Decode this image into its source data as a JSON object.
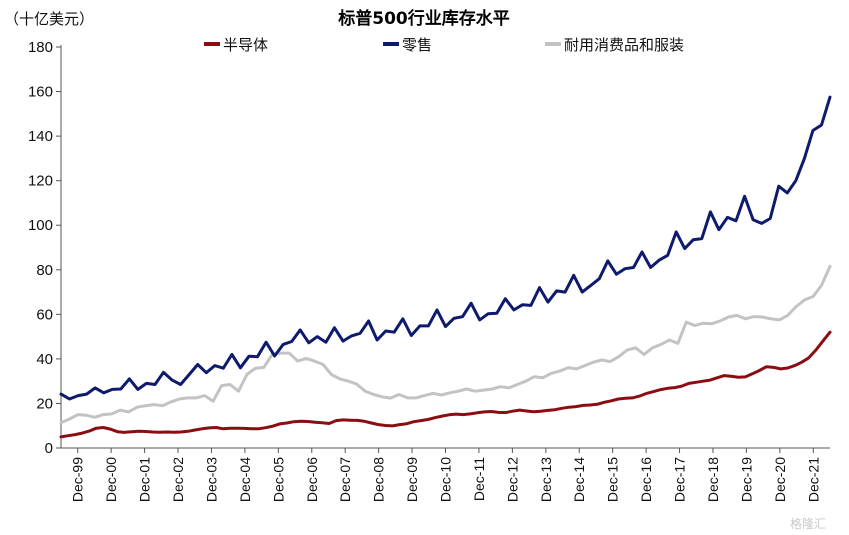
{
  "chart_data": {
    "type": "line",
    "title": "标普500行业库存水平",
    "unit_label": "（十亿美元）",
    "ylim": [
      0,
      180
    ],
    "yticks": [
      0,
      20,
      40,
      60,
      80,
      100,
      120,
      140,
      160,
      180
    ],
    "xlabels": [
      "Dec-99",
      "Dec-00",
      "Dec-01",
      "Dec-02",
      "Dec-03",
      "Dec-04",
      "Dec-05",
      "Dec-06",
      "Dec-07",
      "Dec-08",
      "Dec-09",
      "Dec-10",
      "Dec-11",
      "Dec-12",
      "Dec-13",
      "Dec-14",
      "Dec-15",
      "Dec-16",
      "Dec-17",
      "Dec-18",
      "Dec-19",
      "Dec-20",
      "Dec-21"
    ],
    "grid": false,
    "legend_position": "top",
    "watermark": "格隆汇",
    "series": [
      {
        "name": "半导体",
        "color": "#8b0d12",
        "values": [
          5.0,
          5.5,
          6.0,
          6.7,
          7.6,
          8.9,
          9.2,
          8.5,
          7.3,
          7.0,
          7.3,
          7.5,
          7.4,
          7.2,
          7.1,
          7.2,
          7.1,
          7.2,
          7.5,
          8.1,
          8.6,
          9.0,
          9.2,
          8.6,
          8.9,
          8.9,
          8.8,
          8.6,
          8.6,
          9.1,
          9.8,
          10.8,
          11.2,
          11.8,
          12.0,
          11.9,
          11.6,
          11.3,
          11.0,
          12.3,
          12.6,
          12.5,
          12.4,
          12.0,
          11.2,
          10.5,
          10.1,
          9.9,
          10.5,
          10.9,
          11.8,
          12.3,
          12.8,
          13.6,
          14.3,
          14.9,
          15.2,
          15.0,
          15.3,
          15.8,
          16.2,
          16.4,
          16.0,
          15.9,
          16.5,
          17.0,
          16.6,
          16.3,
          16.5,
          16.9,
          17.2,
          17.8,
          18.3,
          18.6,
          19.1,
          19.3,
          19.6,
          20.5,
          21.2,
          22.0,
          22.3,
          22.5,
          23.3,
          24.5,
          25.3,
          26.2,
          26.8,
          27.1,
          27.8,
          29.0,
          29.5,
          30.0,
          30.5,
          31.5,
          32.5,
          32.2,
          31.8,
          31.9,
          33.3,
          34.8,
          36.5,
          36.2,
          35.5,
          35.9,
          37.0,
          38.5,
          40.5,
          44.0,
          48.0,
          52.0
        ]
      },
      {
        "name": "零售",
        "color": "#0e1a6e",
        "values": [
          24.2,
          22.0,
          23.5,
          24.2,
          27.0,
          24.8,
          26.3,
          26.5,
          31.0,
          26.3,
          29.0,
          28.5,
          34.0,
          30.5,
          28.5,
          33.0,
          37.5,
          33.8,
          37.0,
          35.8,
          42.0,
          36.0,
          41.2,
          41.0,
          47.5,
          41.3,
          46.5,
          47.8,
          53.0,
          47.2,
          50.0,
          47.5,
          54.0,
          48.0,
          50.3,
          51.5,
          57.0,
          48.5,
          52.5,
          52.0,
          58.0,
          50.5,
          54.8,
          54.8,
          62.0,
          54.5,
          58.2,
          59.0,
          65.0,
          57.5,
          60.3,
          60.5,
          67.0,
          62.0,
          64.3,
          64.0,
          72.0,
          65.5,
          70.5,
          70.0,
          77.5,
          70.0,
          73.0,
          76.0,
          84.0,
          78.0,
          80.5,
          81.0,
          88.0,
          81.0,
          84.3,
          86.5,
          97.0,
          89.5,
          93.5,
          94.0,
          106.0,
          98.0,
          103.5,
          102.0,
          113.0,
          102.5,
          100.8,
          103.0,
          117.5,
          114.5,
          120.0,
          130.0,
          142.5,
          145.0,
          157.5
        ]
      },
      {
        "name": "耐用消费品和服装",
        "color": "#c3c3c3",
        "values": [
          11.3,
          13.0,
          15.0,
          14.7,
          13.8,
          15.0,
          15.3,
          17.0,
          16.2,
          18.3,
          19.0,
          19.5,
          19.0,
          20.7,
          22.0,
          22.5,
          22.5,
          23.5,
          21.0,
          28.0,
          28.5,
          25.5,
          33.0,
          35.8,
          36.2,
          42.0,
          42.6,
          42.6,
          39.0,
          40.2,
          39.0,
          37.5,
          33.0,
          31.0,
          30.0,
          28.7,
          25.5,
          24.0,
          23.0,
          22.4,
          24.0,
          22.5,
          22.5,
          23.5,
          24.5,
          23.8,
          24.8,
          25.5,
          26.5,
          25.5,
          26.0,
          26.5,
          27.5,
          27.0,
          28.5,
          30.0,
          32.0,
          31.5,
          33.5,
          34.5,
          36.0,
          35.5,
          37.0,
          38.5,
          39.5,
          38.8,
          41.0,
          44.0,
          45.0,
          42.0,
          45.0,
          46.5,
          48.5,
          47.0,
          56.5,
          55.0,
          56.0,
          55.8,
          57.0,
          58.8,
          59.5,
          58.0,
          59.0,
          58.8,
          58.0,
          57.5,
          59.5,
          63.5,
          66.5,
          68.0,
          73.0,
          81.5
        ]
      }
    ]
  }
}
